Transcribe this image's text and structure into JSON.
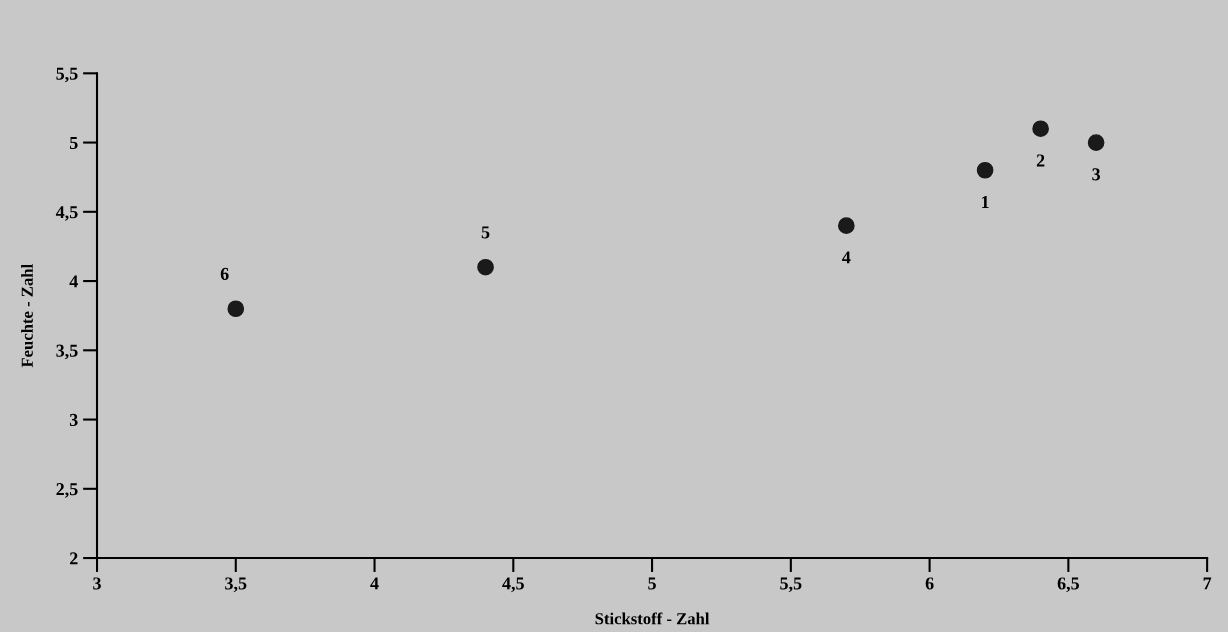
{
  "chart_data": {
    "type": "scatter",
    "xlabel": "Stickstoff - Zahl",
    "ylabel": "Feuchte - Zahl",
    "x": [
      3.5,
      4.4,
      5.7,
      6.2,
      6.4,
      6.6
    ],
    "values": [
      3.8,
      4.1,
      4.4,
      4.8,
      5.1,
      5.0
    ],
    "color": "#1a1a1a",
    "marker": "circle",
    "grid": false,
    "legend": false,
    "xlim": [
      3,
      7
    ],
    "ylim": [
      2,
      5.5
    ],
    "xticks": [
      3,
      {
        "value": 3.5,
        "label": "3,5"
      },
      4,
      {
        "value": 4.5,
        "label": "4,5"
      },
      5,
      {
        "value": 5.5,
        "label": "5,5"
      },
      6,
      {
        "value": 6.5,
        "label": "6,5"
      },
      7
    ],
    "yticks": [
      2,
      {
        "value": 2.5,
        "label": "2,5"
      },
      3,
      {
        "value": 3.5,
        "label": "3,5"
      },
      4,
      {
        "value": 4.5,
        "label": "4,5"
      },
      5,
      {
        "value": 5.5,
        "label": "5,5"
      }
    ],
    "annotations": [
      {
        "text": "6",
        "x": 3.5,
        "y": 3.8
      },
      {
        "text": "5",
        "x": 4.4,
        "y": 4.1
      },
      {
        "text": "4",
        "x": 5.7,
        "y": 4.4
      },
      {
        "text": "1",
        "x": 6.2,
        "y": 4.8
      },
      {
        "text": "2",
        "x": 6.4,
        "y": 5.1
      },
      {
        "text": "3",
        "x": 6.6,
        "y": 5.0
      }
    ]
  }
}
